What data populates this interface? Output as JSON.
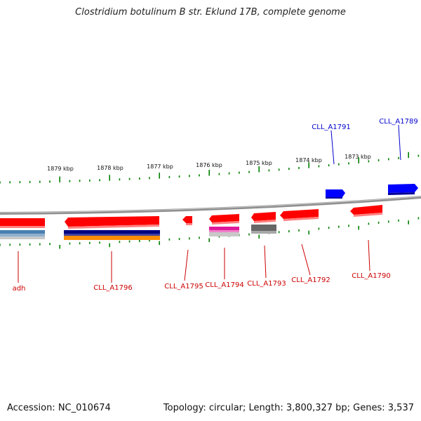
{
  "title": "Clostridium botulinum B str. Eklund 17B, complete genome",
  "footer": {
    "accession": "Accession: NC_010674",
    "summary": "Topology: circular; Length: 3,800,327 bp; Genes: 3,537"
  },
  "colors": {
    "forward_gene": "#0000ff",
    "reverse_gene": "#ff0000",
    "ticks": "#008000",
    "backbone": "#808080"
  },
  "ruler_labels": [
    "1879 kbp",
    "1878 kbp",
    "1877 kbp",
    "1876 kbp",
    "1875 kbp",
    "1874 kbp",
    "1873 kbp"
  ],
  "genes": {
    "forward": [
      "CLL_A1791",
      "CLL_A1789"
    ],
    "reverse": [
      "adh",
      "CLL_A1796",
      "CLL_A1795",
      "CLL_A1794",
      "CLL_A1793",
      "CLL_A1792",
      "CLL_A1790"
    ]
  }
}
